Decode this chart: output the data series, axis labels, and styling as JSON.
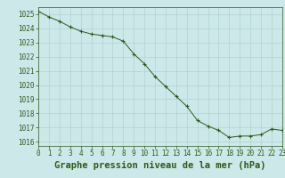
{
  "x": [
    0,
    1,
    2,
    3,
    4,
    5,
    6,
    7,
    8,
    9,
    10,
    11,
    12,
    13,
    14,
    15,
    16,
    17,
    18,
    19,
    20,
    21,
    22,
    23
  ],
  "y": [
    1025.2,
    1024.8,
    1024.5,
    1024.1,
    1023.8,
    1023.6,
    1023.5,
    1023.4,
    1023.1,
    1022.2,
    1021.5,
    1020.6,
    1019.9,
    1019.2,
    1018.5,
    1017.5,
    1017.1,
    1016.8,
    1016.3,
    1016.4,
    1016.4,
    1016.5,
    1016.9,
    1016.8
  ],
  "ylim": [
    1015.7,
    1025.5
  ],
  "xlim": [
    0,
    23
  ],
  "yticks": [
    1016,
    1017,
    1018,
    1019,
    1020,
    1021,
    1022,
    1023,
    1024,
    1025
  ],
  "xticks": [
    0,
    1,
    2,
    3,
    4,
    5,
    6,
    7,
    8,
    9,
    10,
    11,
    12,
    13,
    14,
    15,
    16,
    17,
    18,
    19,
    20,
    21,
    22,
    23
  ],
  "line_color": "#2d5a1b",
  "marker_color": "#2d5a1b",
  "bg_color": "#cce8e8",
  "grid_color": "#aacece",
  "xlabel": "Graphe pression niveau de la mer (hPa)",
  "xlabel_color": "#2d5a1b",
  "tick_color": "#2d5a1b",
  "spine_color": "#2d5a1b",
  "tick_fontsize": 5.5,
  "xlabel_fontsize": 7.5
}
